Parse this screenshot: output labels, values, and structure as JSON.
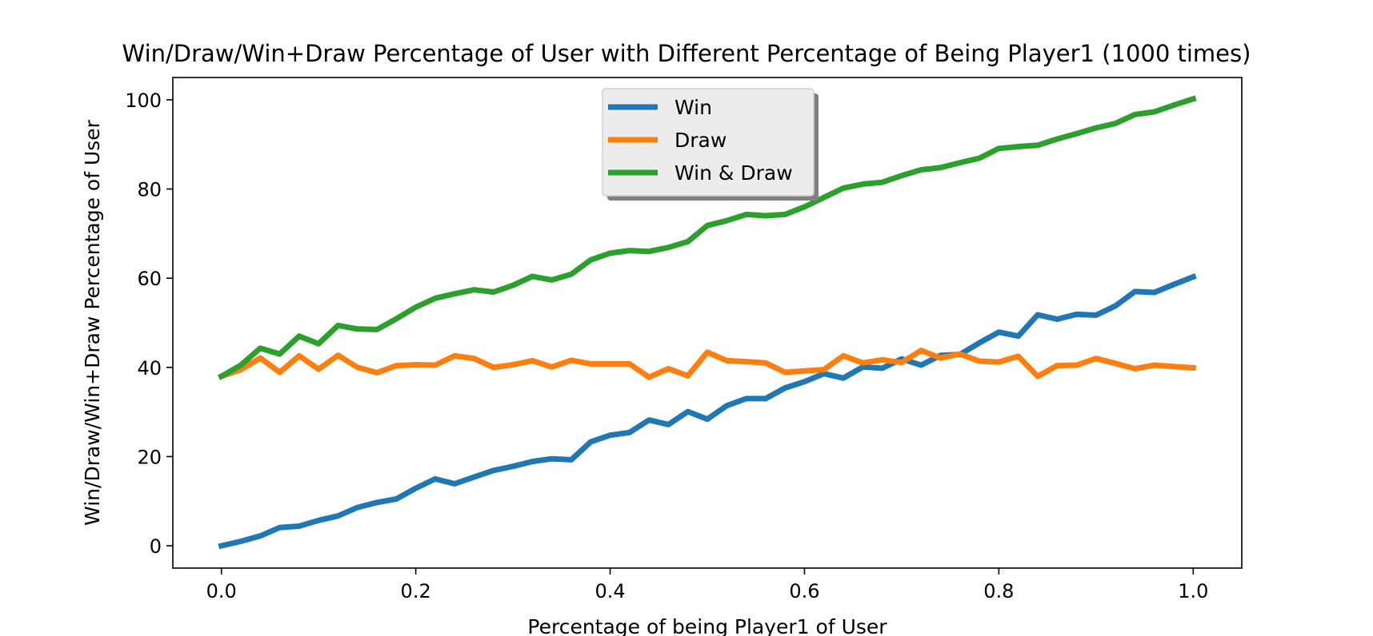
{
  "chart_data": {
    "type": "line",
    "title": "Win/Draw/Win+Draw Percentage of User with Different Percentage of Being Player1 (1000 times)",
    "xlabel": "Percentage of being Player1 of User",
    "ylabel": "Win/Draw/Win+Draw Percentage of User",
    "xlim": [
      -0.05,
      1.05
    ],
    "ylim": [
      -5,
      105
    ],
    "x_ticks": [
      0.0,
      0.2,
      0.4,
      0.6,
      0.8,
      1.0
    ],
    "x_tick_labels": [
      "0.0",
      "0.2",
      "0.4",
      "0.6",
      "0.8",
      "1.0"
    ],
    "y_ticks": [
      0,
      20,
      40,
      60,
      80,
      100
    ],
    "y_tick_labels": [
      "0",
      "20",
      "40",
      "60",
      "80",
      "100"
    ],
    "grid": false,
    "legend_position": "upper-center",
    "x": [
      0.0,
      0.02,
      0.04,
      0.06,
      0.08,
      0.1,
      0.12,
      0.14,
      0.16,
      0.18,
      0.2,
      0.22,
      0.24,
      0.26,
      0.28,
      0.3,
      0.32,
      0.34,
      0.36,
      0.38,
      0.4,
      0.42,
      0.44,
      0.46,
      0.48,
      0.5,
      0.52,
      0.54,
      0.56,
      0.58,
      0.6,
      0.62,
      0.64,
      0.66,
      0.68,
      0.7,
      0.72,
      0.74,
      0.76,
      0.78,
      0.8,
      0.82,
      0.84,
      0.86,
      0.88,
      0.9,
      0.92,
      0.94,
      0.96,
      0.98,
      1.0
    ],
    "series": [
      {
        "name": "Win",
        "color": "#1f77b4",
        "values": [
          0.0,
          1.0,
          2.2,
          4.1,
          4.4,
          5.7,
          6.7,
          8.6,
          9.7,
          10.5,
          12.9,
          15.0,
          13.9,
          15.4,
          16.9,
          17.8,
          18.9,
          19.5,
          19.3,
          23.3,
          24.8,
          25.4,
          28.2,
          27.2,
          30.1,
          28.4,
          31.4,
          33.0,
          33.0,
          35.4,
          36.8,
          38.6,
          37.6,
          40.1,
          39.8,
          41.9,
          40.5,
          42.7,
          42.9,
          45.5,
          47.9,
          47.0,
          51.8,
          50.8,
          51.9,
          51.7,
          53.8,
          57.0,
          56.8,
          58.6,
          60.3
        ]
      },
      {
        "name": "Draw",
        "color": "#ff7f0e",
        "values": [
          38.0,
          39.5,
          42.1,
          38.9,
          42.6,
          39.6,
          42.7,
          40.0,
          38.8,
          40.4,
          40.6,
          40.5,
          42.6,
          42.0,
          40.0,
          40.6,
          41.5,
          40.1,
          41.6,
          40.8,
          40.8,
          40.8,
          37.8,
          39.7,
          38.1,
          43.4,
          41.5,
          41.3,
          41.0,
          38.9,
          39.2,
          39.5,
          42.6,
          41.0,
          41.7,
          41.1,
          43.8,
          42.1,
          43.0,
          41.4,
          41.2,
          42.5,
          38.0,
          40.4,
          40.5,
          42.0,
          40.9,
          39.7,
          40.5,
          40.2,
          39.9
        ]
      },
      {
        "name": "Win & Draw",
        "color": "#2ca02c",
        "values": [
          38.0,
          40.5,
          44.3,
          43.0,
          47.0,
          45.3,
          49.4,
          48.6,
          48.5,
          50.9,
          53.5,
          55.5,
          56.5,
          57.4,
          56.9,
          58.4,
          60.4,
          59.6,
          60.9,
          64.1,
          65.6,
          66.2,
          66.0,
          66.9,
          68.2,
          71.8,
          72.9,
          74.3,
          74.0,
          74.3,
          76.0,
          78.1,
          80.2,
          81.1,
          81.5,
          83.0,
          84.3,
          84.8,
          85.9,
          86.9,
          89.1,
          89.5,
          89.8,
          91.2,
          92.4,
          93.7,
          94.7,
          96.7,
          97.3,
          98.8,
          100.2
        ]
      }
    ]
  }
}
